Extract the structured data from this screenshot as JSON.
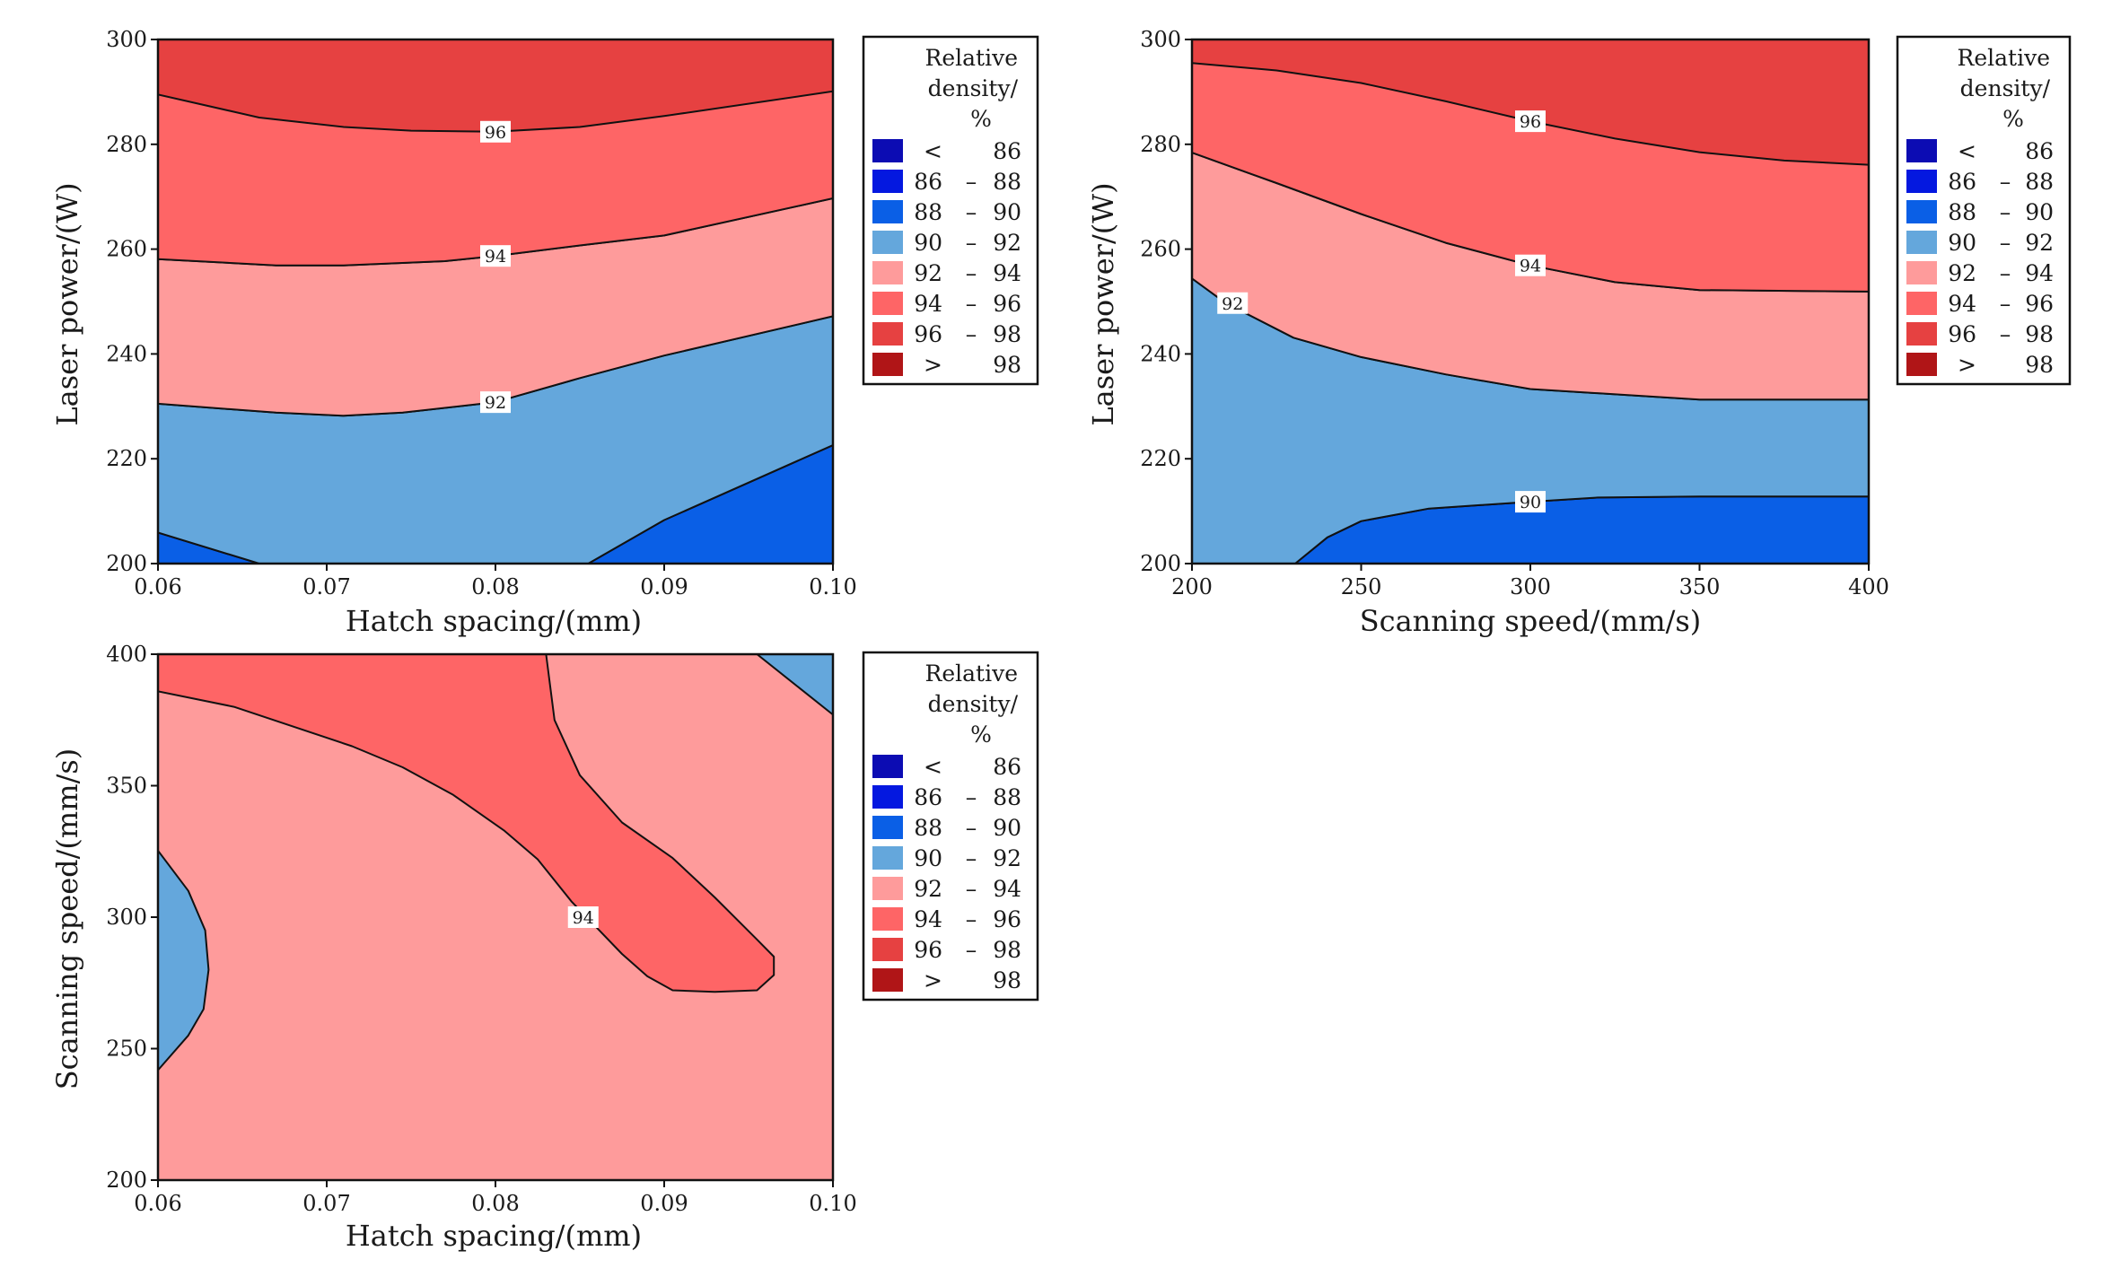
{
  "legend": {
    "title_lines": [
      "Relative",
      "density/",
      "%"
    ],
    "entries": [
      {
        "lo": "<",
        "hi": "86",
        "color": "#0c0cb3"
      },
      {
        "lo": "86",
        "hi": "88",
        "color": "#0418e0"
      },
      {
        "lo": "88",
        "hi": "90",
        "color": "#0a5fe6"
      },
      {
        "lo": "90",
        "hi": "92",
        "color": "#64a7dc"
      },
      {
        "lo": "92",
        "hi": "94",
        "color": "#fe9b9b"
      },
      {
        "lo": "94",
        "hi": "96",
        "color": "#fe6566"
      },
      {
        "lo": "96",
        "hi": "98",
        "color": "#e64141"
      },
      {
        "lo": ">",
        "hi": "98",
        "color": "#b01517"
      }
    ]
  },
  "chart_data": [
    {
      "type": "contour",
      "xlabel": "Hatch spacing/(mm)",
      "ylabel": "Laser power/(W)",
      "xlim": [
        0.06,
        0.1
      ],
      "ylim": [
        200,
        300
      ],
      "xticks": [
        "0.06",
        "0.07",
        "0.08",
        "0.09",
        "0.10"
      ],
      "yticks": [
        "200",
        "220",
        "240",
        "260",
        "280",
        "300"
      ],
      "background_level": "96-98",
      "levels": [
        {
          "range": "88-90",
          "points": [
            [
              0.06,
              200
            ],
            [
              0.06,
              205.9
            ],
            [
              0.066,
              200
            ]
          ]
        },
        {
          "range": "88-90",
          "points": [
            [
              0.0855,
              200
            ],
            [
              0.1,
              200
            ],
            [
              0.1,
              222.6
            ],
            [
              0.09,
              208.3
            ]
          ]
        },
        {
          "range": "90-92",
          "points": [
            [
              0.06,
              205.9
            ],
            [
              0.06,
              230.5
            ],
            [
              0.067,
              228.8
            ],
            [
              0.071,
              228.2
            ],
            [
              0.0745,
              228.8
            ],
            [
              0.08,
              230.8
            ],
            [
              0.085,
              235.4
            ],
            [
              0.09,
              239.7
            ],
            [
              0.1,
              247.2
            ],
            [
              0.1,
              222.6
            ],
            [
              0.09,
              208.3
            ],
            [
              0.0855,
              200
            ],
            [
              0.066,
              200
            ]
          ]
        },
        {
          "range": "92-94",
          "points": [
            [
              0.06,
              230.5
            ],
            [
              0.06,
              258.1
            ],
            [
              0.067,
              256.9
            ],
            [
              0.071,
              256.9
            ],
            [
              0.077,
              257.7
            ],
            [
              0.08,
              258.7
            ],
            [
              0.085,
              260.7
            ],
            [
              0.09,
              262.6
            ],
            [
              0.1,
              269.7
            ],
            [
              0.1,
              247.2
            ],
            [
              0.09,
              239.7
            ],
            [
              0.085,
              235.4
            ],
            [
              0.08,
              230.8
            ],
            [
              0.0745,
              228.8
            ],
            [
              0.071,
              228.2
            ],
            [
              0.067,
              228.8
            ]
          ]
        },
        {
          "range": "94-96",
          "points": [
            [
              0.06,
              258.1
            ],
            [
              0.06,
              289.5
            ],
            [
              0.066,
              285.1
            ],
            [
              0.071,
              283.3
            ],
            [
              0.075,
              282.6
            ],
            [
              0.08,
              282.4
            ],
            [
              0.085,
              283.3
            ],
            [
              0.09,
              285.4
            ],
            [
              0.1,
              290.1
            ],
            [
              0.1,
              269.7
            ],
            [
              0.09,
              262.6
            ],
            [
              0.085,
              260.7
            ],
            [
              0.08,
              258.7
            ],
            [
              0.077,
              257.7
            ],
            [
              0.071,
              256.9
            ],
            [
              0.067,
              256.9
            ]
          ]
        }
      ],
      "contour_labels": [
        {
          "text": "96",
          "x": 0.08,
          "y": 282.4
        },
        {
          "text": "94",
          "x": 0.08,
          "y": 258.7
        },
        {
          "text": "92",
          "x": 0.08,
          "y": 230.8
        }
      ]
    },
    {
      "type": "contour",
      "xlabel": "Scanning speed/(mm/s)",
      "ylabel": "Laser power/(W)",
      "xlim": [
        200,
        400
      ],
      "ylim": [
        200,
        300
      ],
      "xticks": [
        "200",
        "250",
        "300",
        "350",
        "400"
      ],
      "yticks": [
        "200",
        "220",
        "240",
        "260",
        "280",
        "300"
      ],
      "background_level": "96-98",
      "levels": [
        {
          "range": "88-90",
          "points": [
            [
              230.5,
              200
            ],
            [
              240,
              205
            ],
            [
              250,
              208.1
            ],
            [
              270,
              210.5
            ],
            [
              300,
              211.8
            ],
            [
              320,
              212.6
            ],
            [
              350,
              212.8
            ],
            [
              400,
              212.8
            ],
            [
              400,
              200
            ]
          ]
        },
        {
          "range": "90-92",
          "points": [
            [
              200,
              200
            ],
            [
              200,
              254.4
            ],
            [
              210,
              249.7
            ],
            [
              230,
              243.1
            ],
            [
              250,
              239.4
            ],
            [
              275,
              236.1
            ],
            [
              300,
              233.3
            ],
            [
              350,
              231.3
            ],
            [
              400,
              231.3
            ],
            [
              400,
              212.8
            ],
            [
              350,
              212.8
            ],
            [
              320,
              212.6
            ],
            [
              300,
              211.8
            ],
            [
              270,
              210.5
            ],
            [
              250,
              208.1
            ],
            [
              240,
              205
            ],
            [
              230.5,
              200
            ]
          ]
        },
        {
          "range": "92-94",
          "points": [
            [
              200,
              254.4
            ],
            [
              200,
              278.4
            ],
            [
              225,
              272.6
            ],
            [
              250,
              266.7
            ],
            [
              275,
              261.2
            ],
            [
              300,
              256.9
            ],
            [
              325,
              253.7
            ],
            [
              350,
              252.2
            ],
            [
              400,
              251.9
            ],
            [
              400,
              231.3
            ],
            [
              350,
              231.3
            ],
            [
              300,
              233.3
            ],
            [
              275,
              236.1
            ],
            [
              250,
              239.4
            ],
            [
              230,
              243.1
            ],
            [
              210,
              249.7
            ]
          ]
        },
        {
          "range": "94-96",
          "points": [
            [
              200,
              278.4
            ],
            [
              200,
              295.5
            ],
            [
              225,
              294.1
            ],
            [
              250,
              291.7
            ],
            [
              275,
              288.2
            ],
            [
              300,
              284.4
            ],
            [
              325,
              281.1
            ],
            [
              350,
              278.5
            ],
            [
              375,
              276.9
            ],
            [
              400,
              276.1
            ],
            [
              400,
              251.9
            ],
            [
              350,
              252.2
            ],
            [
              325,
              253.7
            ],
            [
              300,
              256.9
            ],
            [
              275,
              261.2
            ],
            [
              250,
              266.7
            ],
            [
              225,
              272.6
            ]
          ]
        }
      ],
      "contour_labels": [
        {
          "text": "96",
          "x": 300,
          "y": 284.4
        },
        {
          "text": "94",
          "x": 300,
          "y": 256.9
        },
        {
          "text": "92",
          "x": 212,
          "y": 249.7
        },
        {
          "text": "90",
          "x": 300,
          "y": 211.8
        }
      ]
    },
    {
      "type": "contour",
      "xlabel": "Hatch spacing/(mm)",
      "ylabel": "Scanning speed/(mm/s)",
      "xlim": [
        0.06,
        0.1
      ],
      "ylim": [
        200,
        400
      ],
      "xticks": [
        "0.06",
        "0.07",
        "0.08",
        "0.09",
        "0.10"
      ],
      "yticks": [
        "200",
        "250",
        "300",
        "350",
        "400"
      ],
      "background_level": "92-94",
      "levels": [
        {
          "range": "90-92",
          "points": [
            [
              0.06,
              241.8
            ],
            [
              0.06,
              325.3
            ],
            [
              0.0618,
              310
            ],
            [
              0.0628,
              295
            ],
            [
              0.063,
              280
            ],
            [
              0.0627,
              265
            ],
            [
              0.0618,
              255
            ]
          ]
        },
        {
          "range": "90-92",
          "points": [
            [
              0.0955,
              400
            ],
            [
              0.1,
              400
            ],
            [
              0.1,
              377
            ]
          ]
        },
        {
          "range": "94-96",
          "points": [
            [
              0.06,
              400
            ],
            [
              0.06,
              385.9
            ],
            [
              0.0645,
              380
            ],
            [
              0.0715,
              365
            ],
            [
              0.0745,
              357
            ],
            [
              0.0775,
              346.5
            ],
            [
              0.0805,
              333
            ],
            [
              0.0825,
              322
            ],
            [
              0.0845,
              306
            ],
            [
              0.086,
              296
            ],
            [
              0.0875,
              286
            ],
            [
              0.089,
              277.5
            ],
            [
              0.0905,
              272.2
            ],
            [
              0.093,
              271.6
            ],
            [
              0.0955,
              272.2
            ],
            [
              0.0965,
              278
            ],
            [
              0.0965,
              285
            ],
            [
              0.0955,
              291.5
            ],
            [
              0.093,
              307.5
            ],
            [
              0.0905,
              322.5
            ],
            [
              0.0875,
              336
            ],
            [
              0.085,
              354
            ],
            [
              0.0835,
              375
            ],
            [
              0.083,
              400
            ]
          ]
        }
      ],
      "contour_labels": [
        {
          "text": "94",
          "x": 0.0852,
          "y": 300
        }
      ]
    }
  ]
}
